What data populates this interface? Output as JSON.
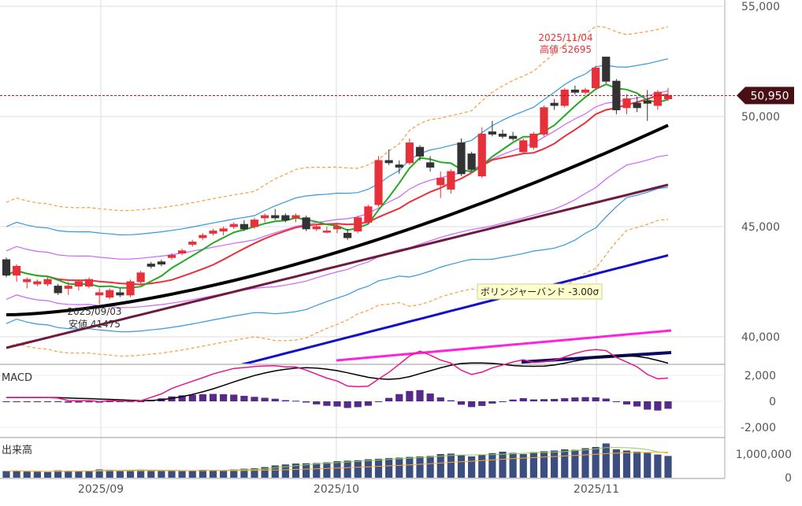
{
  "chart_data": {
    "type": "candlestick",
    "price_axis": {
      "ticks": [
        "55,000",
        "50,000",
        "45,000",
        "40,000"
      ],
      "values": [
        55000,
        50000,
        45000,
        40000
      ]
    },
    "current_price": {
      "label": "50,950",
      "value": 50950
    },
    "x_axis": {
      "labels": [
        "2025/09",
        "2025/10",
        "2025/11"
      ]
    },
    "annotations": {
      "high": {
        "date": "2025/11/04",
        "text": "高値 52695",
        "value": 52695
      },
      "low": {
        "date": "2025/09/03",
        "text": "安値 41475",
        "value": 41475
      },
      "tooltip": "ボリンジャーバンド -3.00σ"
    },
    "macd": {
      "label": "MACD",
      "ticks": [
        "2,000",
        "0",
        "-2,000"
      ],
      "values": [
        2000,
        0,
        -2000
      ]
    },
    "volume": {
      "label": "出来高",
      "ticks": [
        "1,000,000",
        "0"
      ],
      "values": [
        1000000,
        0
      ]
    },
    "candles": [
      [
        43500,
        43600,
        42700,
        42800
      ],
      [
        42800,
        43300,
        42500,
        43200
      ],
      [
        42500,
        42700,
        42200,
        42600
      ],
      [
        42400,
        42600,
        42300,
        42500
      ],
      [
        42400,
        42700,
        42300,
        42600
      ],
      [
        42300,
        42400,
        41900,
        42000
      ],
      [
        42200,
        42500,
        41900,
        42300
      ],
      [
        42300,
        42600,
        42100,
        42500
      ],
      [
        42300,
        42700,
        42200,
        42600
      ],
      [
        41900,
        42200,
        41475,
        42000
      ],
      [
        41800,
        42200,
        41700,
        42100
      ],
      [
        42000,
        42200,
        41800,
        41900
      ],
      [
        41900,
        42600,
        41800,
        42500
      ],
      [
        42500,
        43000,
        42400,
        42900
      ],
      [
        43300,
        43400,
        43100,
        43200
      ],
      [
        43400,
        43500,
        43200,
        43300
      ],
      [
        43600,
        43800,
        43500,
        43700
      ],
      [
        43800,
        44000,
        43700,
        43900
      ],
      [
        44200,
        44400,
        44100,
        44300
      ],
      [
        44500,
        44700,
        44400,
        44600
      ],
      [
        44700,
        44900,
        44600,
        44800
      ],
      [
        44800,
        45000,
        44600,
        44900
      ],
      [
        45000,
        45200,
        44900,
        45100
      ],
      [
        45100,
        45300,
        44800,
        44900
      ],
      [
        45000,
        45400,
        44900,
        45300
      ],
      [
        45400,
        45600,
        45200,
        45500
      ],
      [
        45500,
        45800,
        45300,
        45400
      ],
      [
        45500,
        45600,
        45200,
        45300
      ],
      [
        45400,
        45600,
        45200,
        45500
      ],
      [
        45400,
        45500,
        44800,
        44900
      ],
      [
        44900,
        45100,
        44800,
        45000
      ],
      [
        44800,
        45000,
        44700,
        44800
      ],
      [
        44900,
        45100,
        44700,
        45000
      ],
      [
        44700,
        44900,
        44400,
        44500
      ],
      [
        44800,
        45500,
        44700,
        45400
      ],
      [
        45200,
        46000,
        45100,
        45900
      ],
      [
        46000,
        48200,
        45900,
        48000
      ],
      [
        48000,
        48500,
        47800,
        47900
      ],
      [
        47800,
        48000,
        47400,
        47700
      ],
      [
        47900,
        49000,
        47800,
        48800
      ],
      [
        48600,
        48700,
        48000,
        48200
      ],
      [
        47900,
        48200,
        47500,
        47700
      ],
      [
        46900,
        47500,
        46300,
        47200
      ],
      [
        46700,
        47600,
        46500,
        47500
      ],
      [
        48800,
        49000,
        47300,
        47400
      ],
      [
        48300,
        48400,
        47500,
        47600
      ],
      [
        47300,
        49500,
        47200,
        49200
      ],
      [
        49300,
        49800,
        49100,
        49200
      ],
      [
        49200,
        49400,
        49000,
        49100
      ],
      [
        49100,
        49300,
        48900,
        49000
      ],
      [
        48400,
        49000,
        48300,
        48900
      ],
      [
        48600,
        49300,
        48500,
        49200
      ],
      [
        49200,
        50500,
        49100,
        50400
      ],
      [
        50600,
        50800,
        50300,
        50500
      ],
      [
        50500,
        51300,
        50400,
        51200
      ],
      [
        51200,
        51400,
        51000,
        51100
      ],
      [
        51100,
        51300,
        51000,
        51200
      ],
      [
        51300,
        52300,
        51200,
        52200
      ],
      [
        52695,
        52695,
        51500,
        51600
      ],
      [
        51600,
        51700,
        50100,
        50300
      ],
      [
        50400,
        51000,
        50100,
        50800
      ],
      [
        50600,
        50900,
        50200,
        50400
      ],
      [
        50700,
        51200,
        49800,
        50600
      ],
      [
        50500,
        51200,
        50300,
        51100
      ],
      [
        50800,
        51300,
        50700,
        50950
      ]
    ],
    "volumes": [
      280000,
      300000,
      260000,
      250000,
      240000,
      310000,
      290000,
      270000,
      300000,
      350000,
      330000,
      300000,
      320000,
      340000,
      310000,
      300000,
      290000,
      280000,
      310000,
      330000,
      320000,
      300000,
      350000,
      380000,
      400000,
      450000,
      520000,
      560000,
      600000,
      610000,
      620000,
      650000,
      700000,
      720000,
      740000,
      780000,
      800000,
      830000,
      850000,
      880000,
      900000,
      920000,
      1000000,
      1020000,
      950000,
      900000,
      980000,
      1040000,
      1100000,
      1050000,
      1000000,
      1080000,
      1120000,
      1150000,
      1200000,
      1180000,
      1250000,
      1300000,
      1450000,
      1200000,
      1150000,
      1100000,
      1050000,
      980000,
      920000
    ],
    "colors": {
      "up": "#e8303a",
      "down": "#333333",
      "price_label_bg": "#4a0f14",
      "ma_short": "#22aa22",
      "ma_mid": "#e8303a",
      "ma_long": "#000000",
      "ma_purple": "#6e1a3e",
      "ma_blue": "#1010cc",
      "ma_magenta": "#ff22dd",
      "ma_navy": "#0a0a66",
      "bb_sigma1": "#cc66ff",
      "bb_sigma2": "#3399dd",
      "bb_sigma3": "#ff9933",
      "macd": "#e8158a",
      "signal": "#000000",
      "hist": "#552a88",
      "volume": "#3a4f80",
      "volume_ma": "#99cc44",
      "volume_ma2": "#ffaa33"
    }
  }
}
